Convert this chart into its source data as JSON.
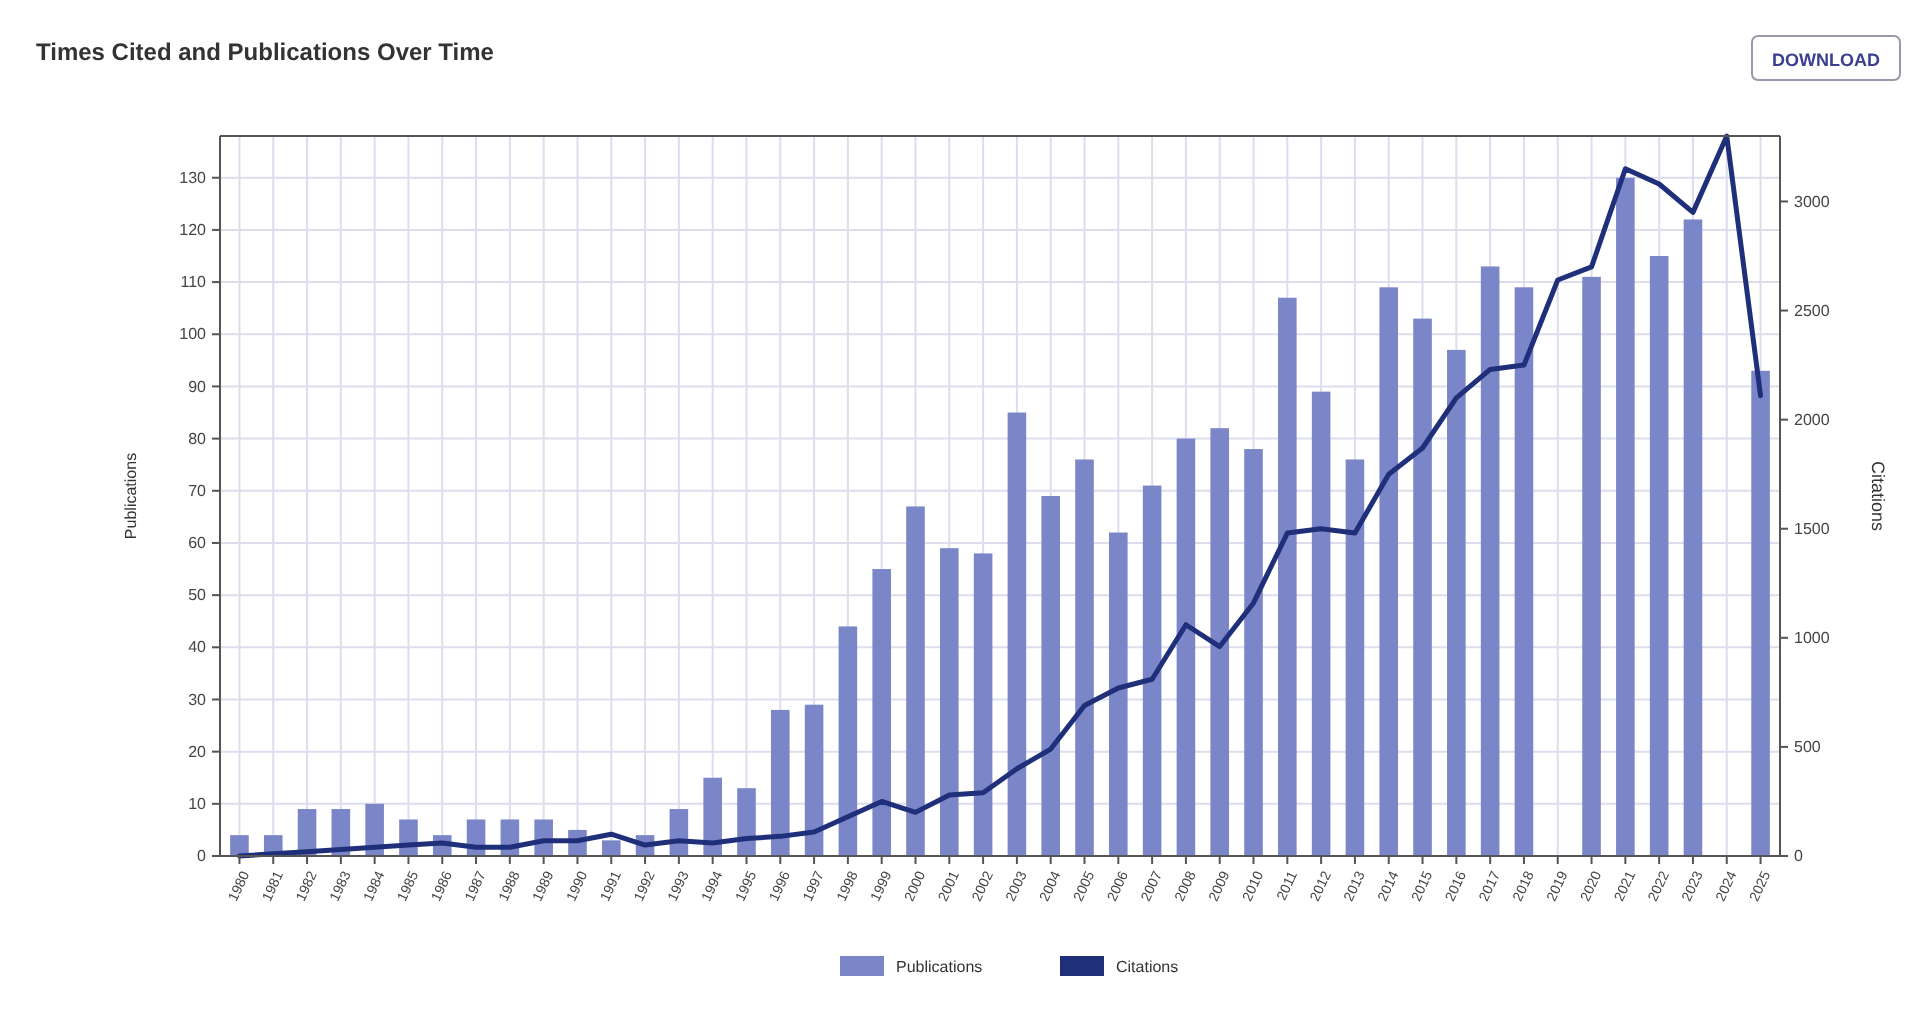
{
  "chart_data": {
    "type": "bar",
    "title": "Times Cited and Publications Over Time",
    "ylabel": "Publications",
    "y2label": "Citations",
    "categories": [
      "1980",
      "1981",
      "1982",
      "1983",
      "1984",
      "1985",
      "1986",
      "1987",
      "1988",
      "1989",
      "1990",
      "1991",
      "1992",
      "1993",
      "1994",
      "1995",
      "1996",
      "1997",
      "1998",
      "1999",
      "2000",
      "2001",
      "2002",
      "2003",
      "2004",
      "2005",
      "2006",
      "2007",
      "2008",
      "2009",
      "2010",
      "2011",
      "2012",
      "2013",
      "2014",
      "2015",
      "2016",
      "2017",
      "2018",
      "2019",
      "2020",
      "2021",
      "2022",
      "2023",
      "2024",
      "2025"
    ],
    "series": [
      {
        "name": "Publications",
        "color": "#7b86c9",
        "values": [
          4,
          4,
          9,
          9,
          10,
          7,
          4,
          7,
          7,
          7,
          5,
          3,
          4,
          9,
          15,
          13,
          28,
          29,
          44,
          55,
          67,
          59,
          58,
          85,
          69,
          76,
          62,
          71,
          80,
          82,
          78,
          107,
          89,
          76,
          109,
          103,
          97,
          113,
          109,
          null,
          111,
          130,
          115,
          122,
          null,
          93
        ]
      },
      {
        "name": "Citations",
        "type": "line",
        "axis": "y2",
        "color": "#1f2f7a",
        "values": [
          0,
          10,
          20,
          30,
          40,
          50,
          60,
          40,
          40,
          70,
          70,
          100,
          50,
          70,
          60,
          80,
          90,
          110,
          180,
          250,
          200,
          280,
          290,
          400,
          490,
          690,
          770,
          810,
          1060,
          960,
          1160,
          1480,
          1500,
          1480,
          1750,
          1870,
          2100,
          2230,
          2250,
          2640,
          2700,
          3150,
          3080,
          2950,
          3300,
          2110
        ]
      }
    ],
    "ylim": [
      0,
      138
    ],
    "yticks": [
      0,
      10,
      20,
      30,
      40,
      50,
      60,
      70,
      80,
      90,
      100,
      110,
      120,
      130
    ],
    "y2lim": [
      0,
      3300
    ],
    "y2ticks": [
      0,
      500,
      1000,
      1500,
      2000,
      2500,
      3000
    ],
    "grid": true,
    "legend": "bottom",
    "annotations": [
      "DOWNLOAD"
    ]
  }
}
